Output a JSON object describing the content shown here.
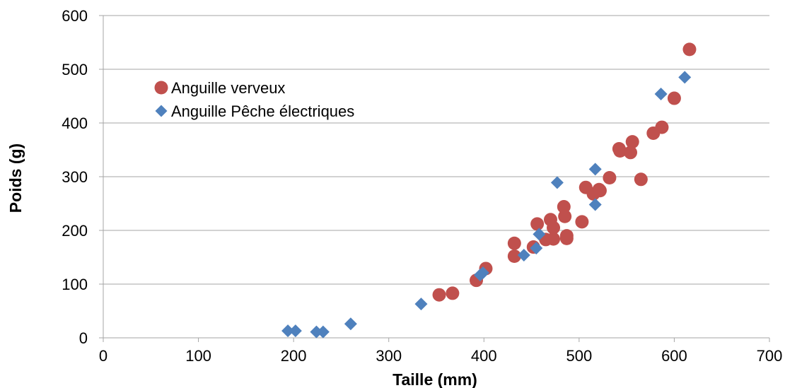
{
  "chart_data": {
    "type": "scatter",
    "xlabel": "Taille (mm)",
    "ylabel": "Poids (g)",
    "xlim": [
      0,
      700
    ],
    "ylim": [
      0,
      600
    ],
    "x_ticks": [
      0,
      100,
      200,
      300,
      400,
      500,
      600,
      700
    ],
    "y_ticks": [
      0,
      100,
      200,
      300,
      400,
      500,
      600
    ],
    "grid": "horizontal",
    "legend_position": "top-left",
    "series": [
      {
        "name": "Anguille verveux",
        "marker": "circle",
        "color": "#C0504D",
        "points": [
          [
            353,
            80
          ],
          [
            367,
            83
          ],
          [
            392,
            107
          ],
          [
            402,
            129
          ],
          [
            432,
            152
          ],
          [
            432,
            176
          ],
          [
            452,
            169
          ],
          [
            456,
            212
          ],
          [
            465,
            183
          ],
          [
            470,
            220
          ],
          [
            473,
            184
          ],
          [
            473,
            205
          ],
          [
            484,
            244
          ],
          [
            485,
            226
          ],
          [
            487,
            185
          ],
          [
            487,
            190
          ],
          [
            503,
            216
          ],
          [
            507,
            280
          ],
          [
            515,
            268
          ],
          [
            521,
            276
          ],
          [
            522,
            274
          ],
          [
            532,
            298
          ],
          [
            542,
            352
          ],
          [
            543,
            348
          ],
          [
            554,
            345
          ],
          [
            556,
            365
          ],
          [
            565,
            295
          ],
          [
            578,
            381
          ],
          [
            587,
            392
          ],
          [
            600,
            446
          ],
          [
            616,
            537
          ]
        ]
      },
      {
        "name": "Anguille Pêche électriques",
        "marker": "diamond",
        "color": "#4F81BD",
        "points": [
          [
            194,
            13
          ],
          [
            202,
            13
          ],
          [
            224,
            11
          ],
          [
            231,
            11
          ],
          [
            260,
            26
          ],
          [
            334,
            63
          ],
          [
            396,
            117
          ],
          [
            399,
            121
          ],
          [
            442,
            154
          ],
          [
            455,
            167
          ],
          [
            458,
            193
          ],
          [
            477,
            289
          ],
          [
            517,
            248
          ],
          [
            517,
            314
          ],
          [
            586,
            454
          ],
          [
            611,
            485
          ]
        ]
      }
    ]
  }
}
